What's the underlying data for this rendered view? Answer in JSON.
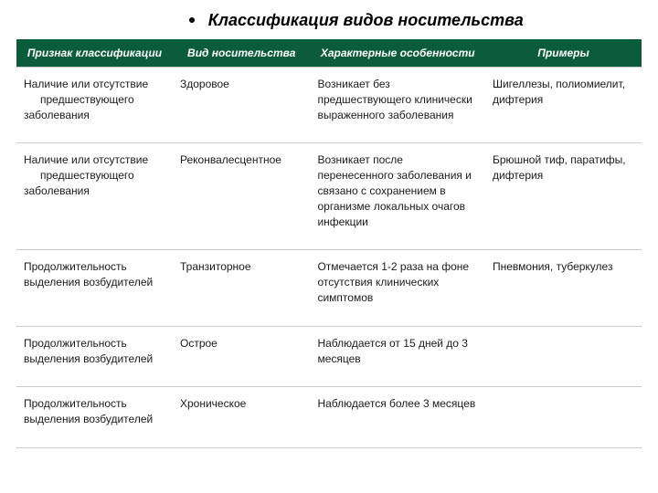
{
  "title": "Классификация видов носительства",
  "columns": [
    "Признак классификации",
    "Вид носительства",
    "Характерные особенности",
    "Примеры"
  ],
  "rows": [
    {
      "c1a": "Наличие или отсутствие",
      "c1b": "предшествующего",
      "c1c": "заболевания",
      "c2": "Здоровое",
      "c3": "Возникает без предшествующего клинически выраженного заболевания",
      "c4": "Шигеллезы, полиомиелит, дифтерия"
    },
    {
      "c1a": "Наличие или отсутствие",
      "c1b": "предшествующего",
      "c1c": "заболевания",
      "c2": "Реконвалесцентное",
      "c3": "Возникает после перенесенного заболевания и связано с сохранением в организме локальных очагов инфекции",
      "c4": "Брюшной тиф, паратифы, дифтерия"
    },
    {
      "c1a": "Продолжительность",
      "c1b": "",
      "c1c": "выделения возбудителей",
      "c2": "Транзиторное",
      "c3": "Отмечается 1-2 раза на фоне отсутствия клинических симптомов",
      "c4": "Пневмония, туберкулез"
    },
    {
      "c1a": "Продолжительность",
      "c1b": "",
      "c1c": "выделения возбудителей",
      "c2": "Острое",
      "c3": "Наблюдается от 15 дней до 3 месяцев",
      "c4": ""
    },
    {
      "c1a": "Продолжительность",
      "c1b": "",
      "c1c": "выделения возбудителей",
      "c2": "Хроническое",
      "c3": "Наблюдается более 3 месяцев",
      "c4": ""
    }
  ],
  "style": {
    "header_bg": "#0a5c3a",
    "header_text_color": "#ffffff",
    "body_bg": "#ffffff",
    "text_color": "#1a1a1a",
    "border_color": "#cccccc",
    "title_fontsize": 18,
    "header_fontsize": 12,
    "cell_fontsize": 12,
    "col_widths_pct": [
      25,
      22,
      28,
      25
    ]
  }
}
